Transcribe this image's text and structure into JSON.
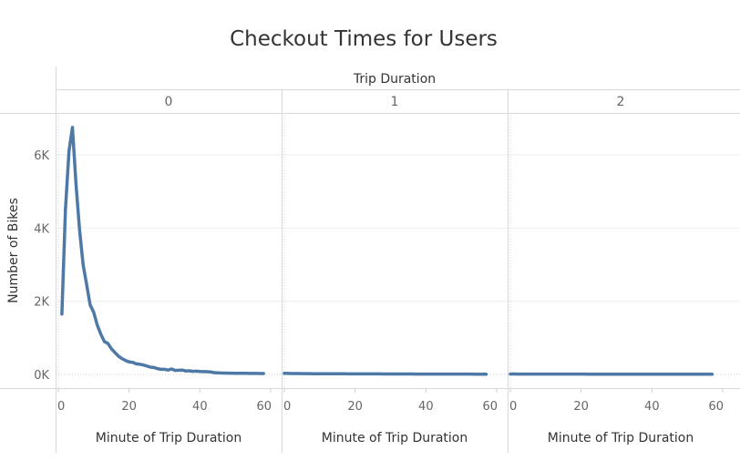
{
  "chart_data": {
    "type": "line",
    "title": "Checkout Times for Users",
    "column_header": "Trip Duration",
    "ylabel": "Number of Bikes",
    "xlabel": "Minute of Trip Duration",
    "ylim": [
      0,
      7000
    ],
    "y_ticks": [
      {
        "v": 0,
        "label": "0K"
      },
      {
        "v": 2000,
        "label": "2K"
      },
      {
        "v": 4000,
        "label": "4K"
      },
      {
        "v": 6000,
        "label": "6K"
      }
    ],
    "xlim": [
      0,
      60
    ],
    "x_ticks": [
      0,
      20,
      40,
      60
    ],
    "line_color": "#4e79a7",
    "panels": [
      {
        "label": "0",
        "x": [
          1,
          2,
          3,
          4,
          5,
          6,
          7,
          8,
          9,
          10,
          11,
          12,
          13,
          14,
          15,
          16,
          17,
          18,
          19,
          20,
          21,
          22,
          23,
          24,
          25,
          26,
          27,
          28,
          29,
          30,
          31,
          32,
          33,
          34,
          35,
          36,
          37,
          38,
          39,
          40,
          41,
          42,
          43,
          44,
          45,
          46,
          47,
          48,
          49,
          50,
          51,
          52,
          53,
          54,
          55,
          56,
          57,
          58
        ],
        "values": [
          1650,
          4500,
          6100,
          6750,
          5200,
          3950,
          3000,
          2450,
          1900,
          1700,
          1350,
          1100,
          900,
          850,
          700,
          600,
          500,
          430,
          380,
          340,
          330,
          290,
          280,
          260,
          230,
          200,
          190,
          160,
          140,
          140,
          120,
          150,
          110,
          115,
          120,
          95,
          100,
          85,
          90,
          80,
          78,
          75,
          70,
          50,
          45,
          40,
          38,
          36,
          35,
          33,
          32,
          30,
          30,
          28,
          28,
          27,
          26,
          25
        ]
      },
      {
        "label": "1",
        "x": [
          0,
          1,
          2,
          3,
          4,
          5,
          6,
          7,
          8,
          9,
          10,
          11,
          12,
          13,
          14,
          15,
          16,
          17,
          18,
          19,
          20,
          21,
          22,
          23,
          24,
          25,
          26,
          27,
          28,
          29,
          30,
          31,
          32,
          33,
          34,
          35,
          36,
          37,
          38,
          39,
          40,
          41,
          42,
          43,
          44,
          45,
          46,
          47,
          48,
          49,
          50,
          51,
          52,
          53,
          54,
          55,
          56,
          57
        ],
        "values": [
          30,
          28,
          26,
          24,
          25,
          23,
          22,
          22,
          21,
          20,
          20,
          19,
          19,
          18,
          18,
          18,
          17,
          17,
          16,
          16,
          16,
          15,
          15,
          15,
          14,
          14,
          14,
          14,
          13,
          13,
          13,
          13,
          12,
          12,
          12,
          12,
          12,
          11,
          11,
          11,
          11,
          11,
          10,
          10,
          10,
          10,
          10,
          10,
          9,
          9,
          9,
          9,
          9,
          9,
          8,
          8,
          8,
          8
        ]
      },
      {
        "label": "2",
        "x": [
          0,
          1,
          2,
          3,
          4,
          5,
          6,
          7,
          8,
          9,
          10,
          11,
          12,
          13,
          14,
          15,
          16,
          17,
          18,
          19,
          20,
          21,
          22,
          23,
          24,
          25,
          26,
          27,
          28,
          29,
          30,
          31,
          32,
          33,
          34,
          35,
          36,
          37,
          38,
          39,
          40,
          41,
          42,
          43,
          44,
          45,
          46,
          47,
          48,
          49,
          50,
          51,
          52,
          53,
          54,
          55,
          56,
          57
        ],
        "values": [
          12,
          12,
          11,
          11,
          11,
          11,
          10,
          10,
          10,
          10,
          10,
          10,
          10,
          9,
          9,
          9,
          9,
          9,
          9,
          9,
          9,
          9,
          8,
          8,
          8,
          8,
          8,
          8,
          8,
          8,
          8,
          8,
          8,
          7,
          7,
          7,
          7,
          7,
          7,
          7,
          7,
          7,
          7,
          7,
          7,
          7,
          6,
          6,
          6,
          6,
          6,
          6,
          6,
          6,
          6,
          6,
          6,
          6
        ]
      }
    ]
  }
}
